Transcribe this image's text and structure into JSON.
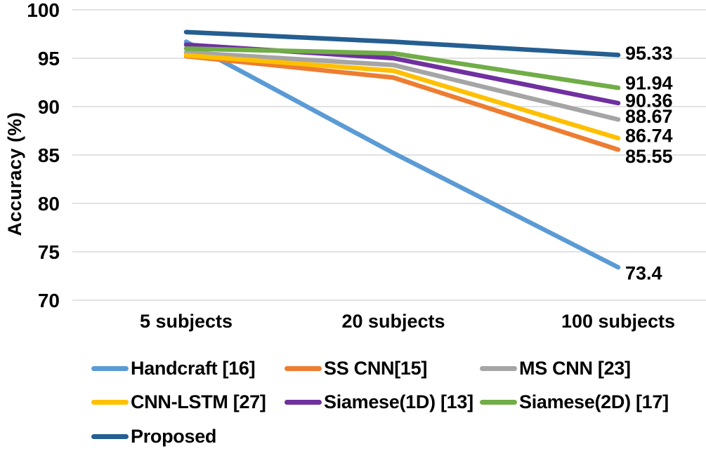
{
  "figure": {
    "background": "#FFFFFF",
    "text_color": "#000000",
    "gridline_color": "#D9D9D9"
  },
  "chart_data": {
    "type": "line",
    "title": "",
    "xlabel": "",
    "ylabel": "Accuracy (%)",
    "categories": [
      "5 subjects",
      "20 subjects",
      "100 subjects"
    ],
    "ylim": [
      70,
      100
    ],
    "yticks": [
      100,
      95,
      90,
      85,
      80,
      75,
      70
    ],
    "grid": true,
    "legend_position": "bottom-left",
    "series": [
      {
        "name": "Handcraft [16]",
        "color": "#5B9BD5",
        "values": [
          96.7,
          85.2,
          73.4
        ],
        "end_label": "73.4"
      },
      {
        "name": "SS CNN[15]",
        "color": "#ED7D31",
        "values": [
          95.2,
          93.0,
          85.55
        ],
        "end_label": "85.55"
      },
      {
        "name": "MS CNN [23]",
        "color": "#A5A5A5",
        "values": [
          95.6,
          94.3,
          88.67
        ],
        "end_label": "88.67"
      },
      {
        "name": "CNN-LSTM [27]",
        "color": "#FFC000",
        "values": [
          95.3,
          93.7,
          86.74
        ],
        "end_label": "86.74"
      },
      {
        "name": "Siamese(1D) [13]",
        "color": "#7030A0",
        "values": [
          96.4,
          95.0,
          90.36
        ],
        "end_label": "90.36"
      },
      {
        "name": "Siamese(2D) [17]",
        "color": "#70AD47",
        "values": [
          96.0,
          95.5,
          91.94
        ],
        "end_label": "91.94"
      },
      {
        "name": "Proposed",
        "color": "#255E91",
        "values": [
          97.7,
          96.7,
          95.33
        ],
        "end_label": "95.33"
      }
    ]
  }
}
